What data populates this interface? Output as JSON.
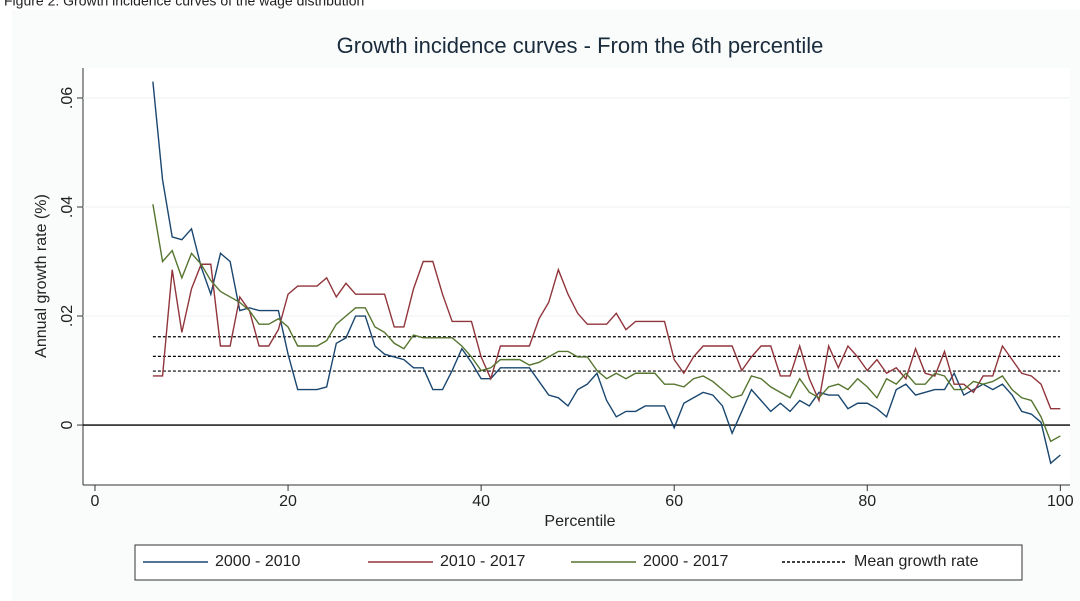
{
  "caption": "Figure 2: Growth incidence curves of the wage distribution",
  "chart_data": {
    "type": "line",
    "title": "Growth incidence curves - From the 6th percentile",
    "x_label": "Percentile",
    "y_label": "Annual growth rate (%)",
    "x": [
      6,
      7,
      8,
      9,
      10,
      11,
      12,
      13,
      14,
      15,
      16,
      17,
      18,
      19,
      20,
      21,
      22,
      23,
      24,
      25,
      26,
      27,
      28,
      29,
      30,
      31,
      32,
      33,
      34,
      35,
      36,
      37,
      38,
      39,
      40,
      41,
      42,
      43,
      44,
      45,
      46,
      47,
      48,
      49,
      50,
      51,
      52,
      53,
      54,
      55,
      56,
      57,
      58,
      59,
      60,
      61,
      62,
      63,
      64,
      65,
      66,
      67,
      68,
      69,
      70,
      71,
      72,
      73,
      74,
      75,
      76,
      77,
      78,
      79,
      80,
      81,
      82,
      83,
      84,
      85,
      86,
      87,
      88,
      89,
      90,
      91,
      92,
      93,
      94,
      95,
      96,
      97,
      98,
      99,
      100
    ],
    "series": [
      {
        "name": "2000 - 2010",
        "color": "#1a476f",
        "values": [
          0.063,
          0.045,
          0.0345,
          0.034,
          0.036,
          0.029,
          0.024,
          0.0315,
          0.03,
          0.021,
          0.0215,
          0.021,
          0.021,
          0.021,
          0.013,
          0.0065,
          0.0065,
          0.0065,
          0.007,
          0.015,
          0.016,
          0.02,
          0.02,
          0.0145,
          0.013,
          0.0125,
          0.012,
          0.0105,
          0.0105,
          0.0065,
          0.0065,
          0.01,
          0.014,
          0.0115,
          0.0085,
          0.0085,
          0.0105,
          0.0105,
          0.0105,
          0.0105,
          0.008,
          0.0055,
          0.005,
          0.0035,
          0.0065,
          0.0075,
          0.0095,
          0.0045,
          0.0015,
          0.0025,
          0.0025,
          0.0035,
          0.0035,
          0.0035,
          -0.0005,
          0.004,
          0.005,
          0.006,
          0.0055,
          0.0035,
          -0.0015,
          0.0025,
          0.0065,
          0.0045,
          0.0025,
          0.004,
          0.0025,
          0.0045,
          0.0035,
          0.006,
          0.0055,
          0.0055,
          0.003,
          0.004,
          0.004,
          0.003,
          0.0015,
          0.0065,
          0.0075,
          0.0055,
          0.006,
          0.0065,
          0.0065,
          0.0095,
          0.0055,
          0.0065,
          0.0075,
          0.0065,
          0.0075,
          0.0055,
          0.0025,
          0.002,
          0.0005,
          -0.007,
          -0.0055
        ]
      },
      {
        "name": "2010 - 2017",
        "color": "#90353b",
        "values": [
          0.009,
          0.009,
          0.0285,
          0.017,
          0.025,
          0.0295,
          0.0295,
          0.0145,
          0.0145,
          0.0235,
          0.021,
          0.0145,
          0.0145,
          0.0175,
          0.024,
          0.0255,
          0.0255,
          0.0255,
          0.027,
          0.0235,
          0.026,
          0.024,
          0.024,
          0.024,
          0.024,
          0.018,
          0.018,
          0.025,
          0.03,
          0.03,
          0.024,
          0.019,
          0.019,
          0.019,
          0.0125,
          0.0085,
          0.0145,
          0.0145,
          0.0145,
          0.0145,
          0.0195,
          0.0225,
          0.0285,
          0.024,
          0.0205,
          0.0185,
          0.0185,
          0.0185,
          0.0205,
          0.0175,
          0.019,
          0.019,
          0.019,
          0.019,
          0.012,
          0.0095,
          0.0125,
          0.0145,
          0.0145,
          0.0145,
          0.0145,
          0.01,
          0.0125,
          0.0145,
          0.0145,
          0.009,
          0.009,
          0.0145,
          0.0085,
          0.0045,
          0.0145,
          0.0105,
          0.0145,
          0.0125,
          0.01,
          0.012,
          0.0095,
          0.0105,
          0.0085,
          0.014,
          0.0095,
          0.009,
          0.0135,
          0.0075,
          0.0075,
          0.006,
          0.009,
          0.009,
          0.0145,
          0.012,
          0.0095,
          0.009,
          0.0075,
          0.003,
          0.003
        ]
      },
      {
        "name": "2000 - 2017",
        "color": "#55752f",
        "values": [
          0.0405,
          0.03,
          0.032,
          0.027,
          0.0315,
          0.0295,
          0.0265,
          0.0245,
          0.0235,
          0.0225,
          0.021,
          0.0185,
          0.0185,
          0.0195,
          0.018,
          0.0145,
          0.0145,
          0.0145,
          0.0155,
          0.0185,
          0.02,
          0.0215,
          0.0215,
          0.018,
          0.017,
          0.015,
          0.014,
          0.0165,
          0.016,
          0.016,
          0.016,
          0.016,
          0.0145,
          0.0125,
          0.01,
          0.0105,
          0.012,
          0.012,
          0.012,
          0.011,
          0.0115,
          0.0125,
          0.0135,
          0.0135,
          0.0125,
          0.0125,
          0.01,
          0.0085,
          0.0095,
          0.0085,
          0.0095,
          0.0095,
          0.0095,
          0.0075,
          0.0075,
          0.007,
          0.0085,
          0.009,
          0.008,
          0.0065,
          0.005,
          0.0055,
          0.009,
          0.0085,
          0.007,
          0.006,
          0.005,
          0.0085,
          0.006,
          0.005,
          0.007,
          0.0075,
          0.0065,
          0.0085,
          0.007,
          0.005,
          0.0085,
          0.0075,
          0.0095,
          0.0075,
          0.0075,
          0.0095,
          0.009,
          0.0065,
          0.0065,
          0.008,
          0.0075,
          0.008,
          0.009,
          0.0065,
          0.005,
          0.0045,
          0.0015,
          -0.003,
          -0.002
        ]
      }
    ],
    "reference_lines": {
      "name": "Mean growth rate",
      "color": "#000000",
      "values": [
        0.0162,
        0.0126,
        0.0099
      ]
    },
    "xlim": [
      -1.24,
      101
    ],
    "ylim": [
      -0.011,
      0.0655
    ],
    "xticks": [
      0,
      20,
      40,
      60,
      80,
      100
    ],
    "yticks": [
      {
        "value": 0,
        "label": "0"
      },
      {
        "value": 0.02,
        "label": ".02"
      },
      {
        "value": 0.04,
        "label": ".04"
      },
      {
        "value": 0.06,
        "label": ".06"
      }
    ],
    "grid": true
  }
}
